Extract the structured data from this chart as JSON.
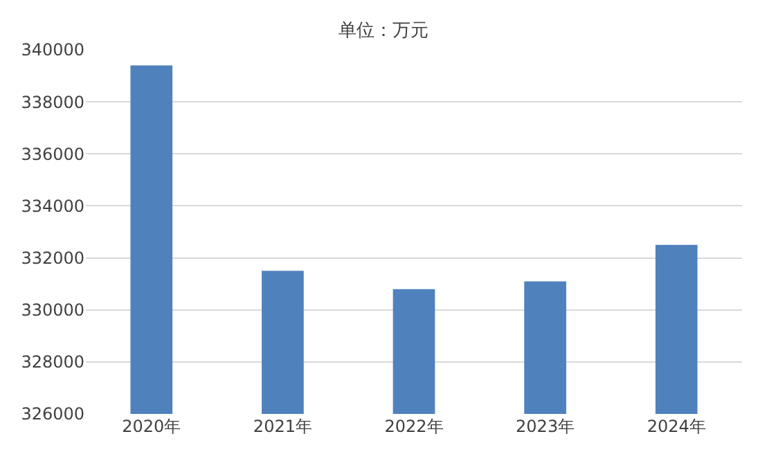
{
  "chart_data": {
    "type": "bar",
    "title": "单位：万元",
    "categories": [
      "2020年",
      "2021年",
      "2022年",
      "2023年",
      "2024年"
    ],
    "values": [
      339400,
      331500,
      330800,
      331100,
      332500
    ],
    "color": "#4f81bd",
    "ylim": [
      326000,
      340000
    ],
    "yticks": [
      326000,
      328000,
      330000,
      332000,
      334000,
      336000,
      338000,
      340000
    ],
    "grid": "y",
    "legend": false
  }
}
